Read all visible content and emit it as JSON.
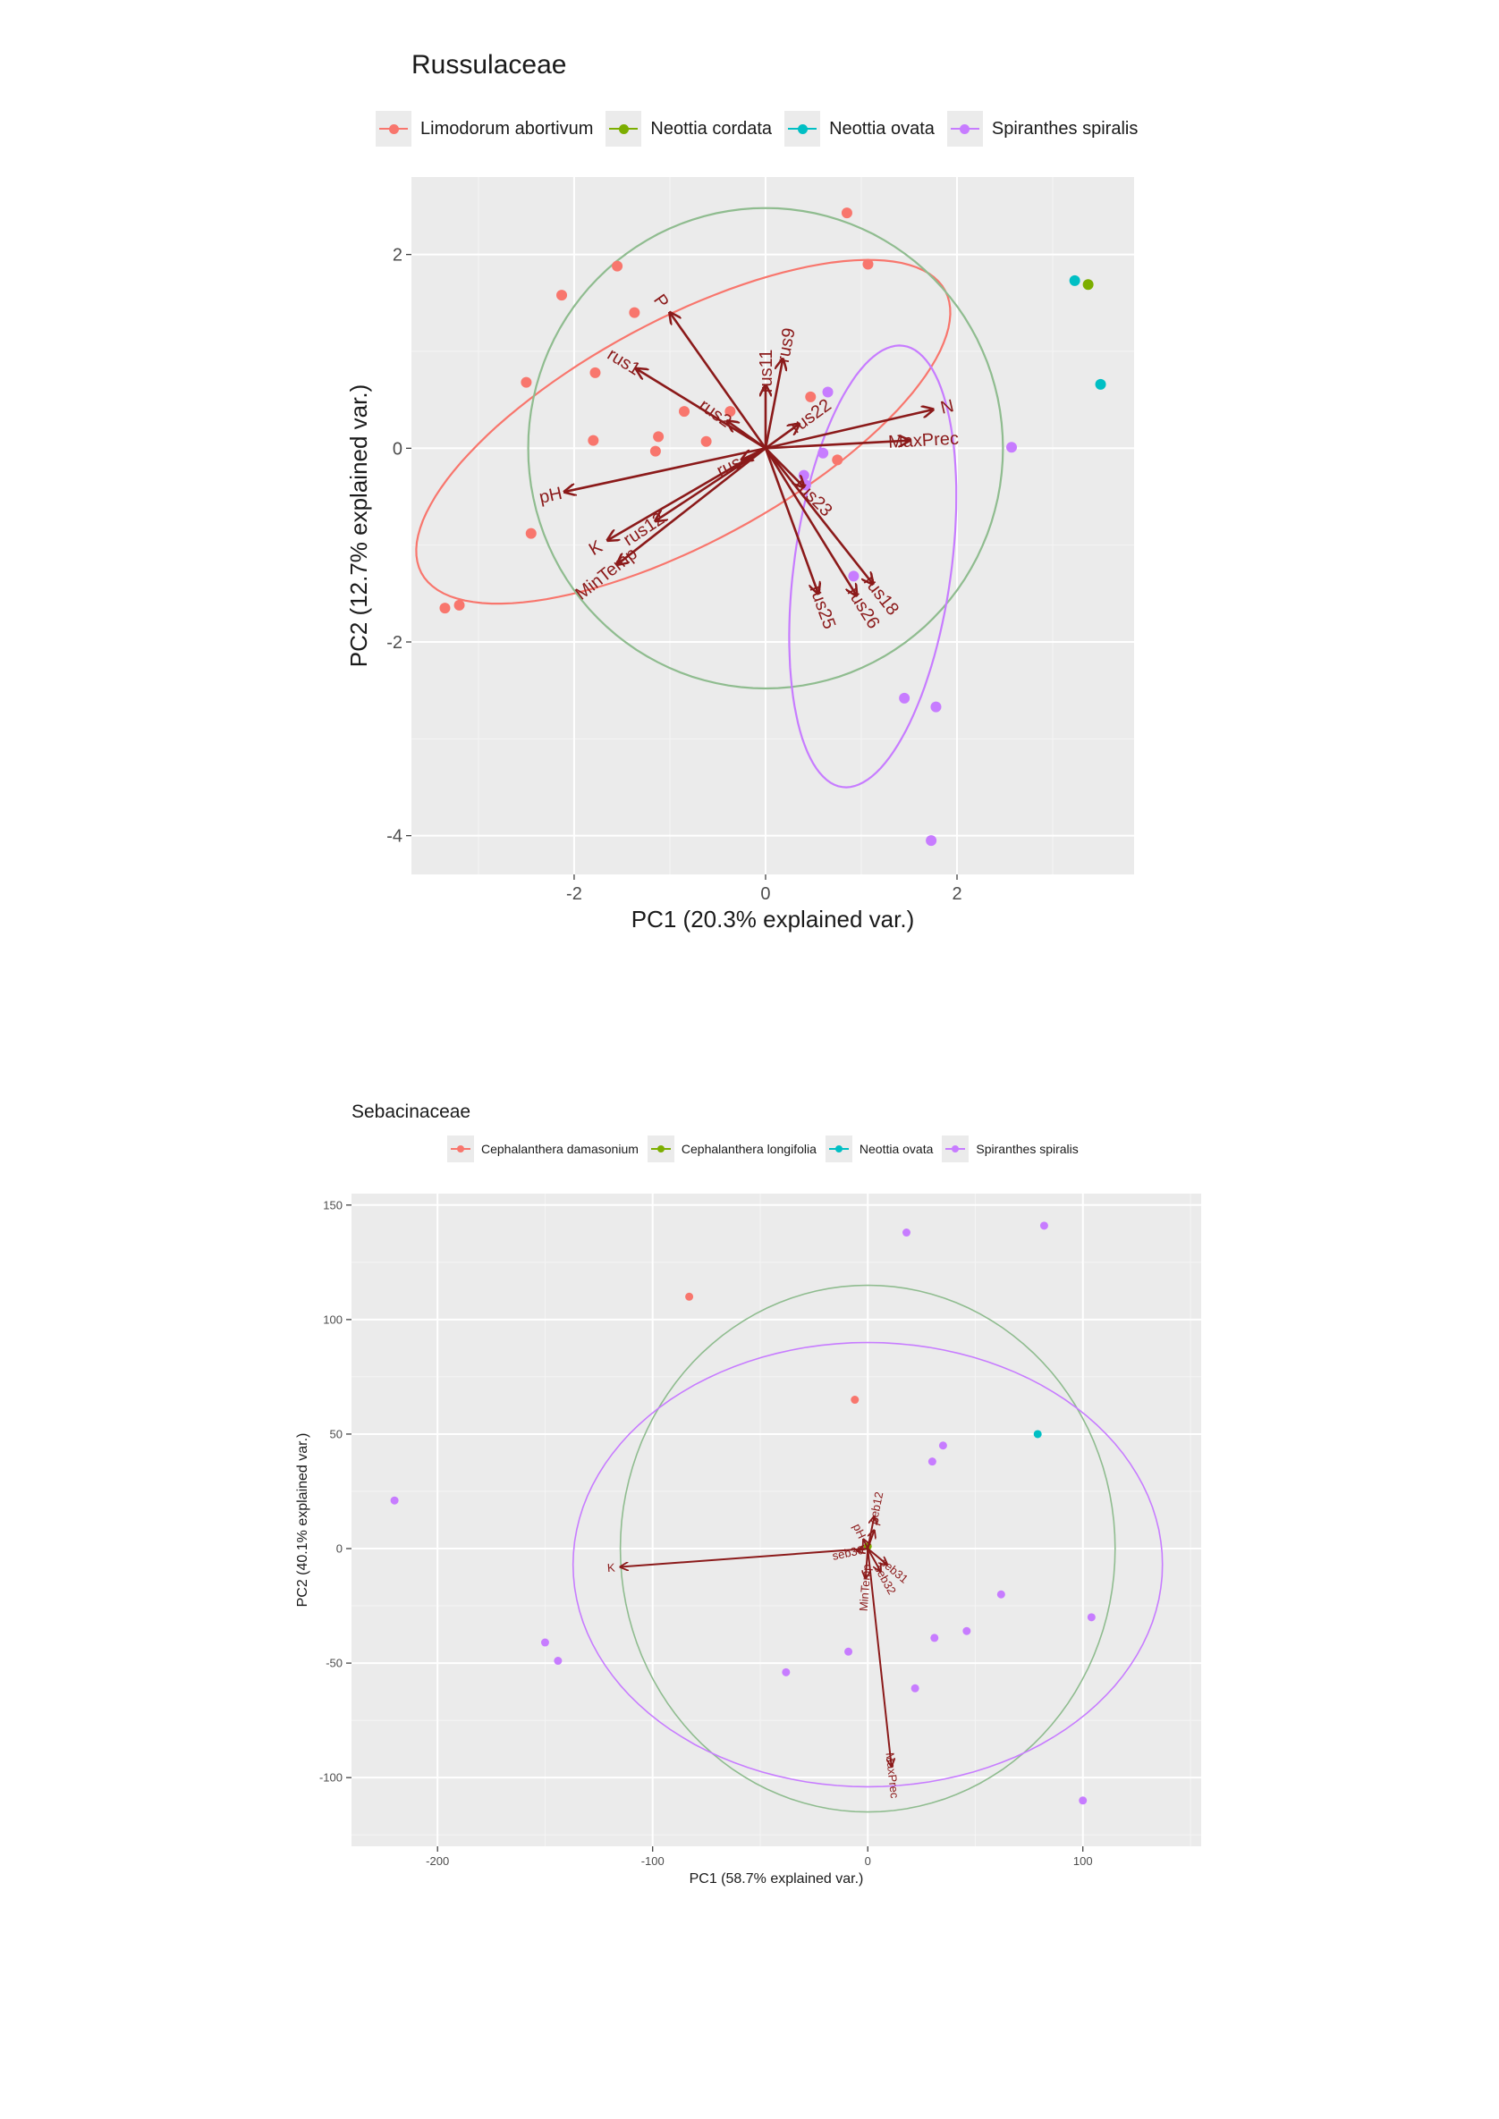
{
  "chart_data": [
    {
      "type": "scatter",
      "title": "Russulaceae",
      "xlabel": "PC1 (20.3% explained var.)",
      "ylabel": "PC2 (12.7% explained var.)",
      "xlim": [
        -3.7,
        3.85
      ],
      "ylim": [
        -4.4,
        2.8
      ],
      "xticks": [
        -2,
        0,
        2
      ],
      "yticks": [
        -4,
        -2,
        0,
        2
      ],
      "grid": true,
      "legend_position": "top",
      "series": [
        {
          "name": "Limodorum abortivum",
          "color": "#F8766D",
          "points": [
            [
              0.85,
              2.43
            ],
            [
              1.07,
              1.9
            ],
            [
              -1.55,
              1.88
            ],
            [
              -2.13,
              1.58
            ],
            [
              -1.37,
              1.4
            ],
            [
              -2.5,
              0.68
            ],
            [
              -1.78,
              0.78
            ],
            [
              0.47,
              0.53
            ],
            [
              -0.85,
              0.38
            ],
            [
              -0.37,
              0.38
            ],
            [
              -1.12,
              0.12
            ],
            [
              -1.8,
              0.08
            ],
            [
              -0.62,
              0.07
            ],
            [
              -1.15,
              -0.03
            ],
            [
              0.75,
              -0.12
            ],
            [
              -2.45,
              -0.88
            ],
            [
              -3.2,
              -1.62
            ],
            [
              -3.35,
              -1.65
            ]
          ]
        },
        {
          "name": "Neottia cordata",
          "color": "#7CAE00",
          "points": [
            [
              3.37,
              1.69
            ]
          ]
        },
        {
          "name": "Neottia ovata",
          "color": "#00BFC4",
          "points": [
            [
              3.23,
              1.73
            ],
            [
              3.5,
              0.66
            ]
          ]
        },
        {
          "name": "Spiranthes spiralis",
          "color": "#C77CFF",
          "points": [
            [
              0.65,
              0.58
            ],
            [
              2.57,
              0.01
            ],
            [
              0.6,
              -0.05
            ],
            [
              0.4,
              -0.28
            ],
            [
              0.42,
              -0.38
            ],
            [
              0.92,
              -1.32
            ],
            [
              1.45,
              -2.58
            ],
            [
              1.78,
              -2.67
            ],
            [
              1.73,
              -4.05
            ]
          ]
        }
      ],
      "ellipses": [
        {
          "group": "Limodorum abortivum",
          "color": "#F8766D",
          "cx": -0.86,
          "cy": 0.17,
          "rx": 3.1,
          "ry": 1.15,
          "angle_deg": 28
        },
        {
          "group": "all",
          "color": "#8fbc8f",
          "cx": 0.0,
          "cy": 0.0,
          "rx": 2.48,
          "ry": 2.48,
          "angle_deg": 0
        },
        {
          "group": "Spiranthes spiralis",
          "color": "#C77CFF",
          "cx": 1.12,
          "cy": -1.22,
          "rx": 2.3,
          "ry": 0.82,
          "angle_deg": 82
        }
      ],
      "vectors": [
        {
          "label": "P",
          "x": -1.0,
          "y": 1.4
        },
        {
          "label": "rus1",
          "x": -1.35,
          "y": 0.82
        },
        {
          "label": "rus11",
          "x": 0.0,
          "y": 0.65
        },
        {
          "label": "rus9",
          "x": 0.18,
          "y": 0.92
        },
        {
          "label": "rus2",
          "x": -0.4,
          "y": 0.28
        },
        {
          "label": "rus22",
          "x": 0.35,
          "y": 0.25
        },
        {
          "label": "N",
          "x": 1.75,
          "y": 0.4
        },
        {
          "label": "MaxPrec",
          "x": 1.5,
          "y": 0.08
        },
        {
          "label": "rus",
          "x": -0.25,
          "y": -0.12
        },
        {
          "label": "pH",
          "x": -2.1,
          "y": -0.45
        },
        {
          "label": "rus12",
          "x": -1.15,
          "y": -0.75
        },
        {
          "label": "K",
          "x": -1.65,
          "y": -0.95
        },
        {
          "label": "MinTemp",
          "x": -1.55,
          "y": -1.2
        },
        {
          "label": "rus23",
          "x": 0.4,
          "y": -0.4
        },
        {
          "label": "rus25",
          "x": 0.55,
          "y": -1.5
        },
        {
          "label": "rus26",
          "x": 0.95,
          "y": -1.52
        },
        {
          "label": "rus18",
          "x": 1.12,
          "y": -1.4
        }
      ]
    },
    {
      "type": "scatter",
      "title": "Sebacinaceae",
      "xlabel": "PC1 (58.7% explained var.)",
      "ylabel": "PC2 (40.1% explained var.)",
      "xlim": [
        -240,
        155
      ],
      "ylim": [
        -130,
        155
      ],
      "xticks": [
        -200,
        -100,
        0,
        100
      ],
      "yticks": [
        -100,
        -50,
        0,
        50,
        100,
        150
      ],
      "grid": true,
      "legend_position": "top",
      "series": [
        {
          "name": "Cephalanthera damasonium",
          "color": "#F8766D",
          "points": [
            [
              -83,
              110
            ],
            [
              -6,
              65
            ]
          ]
        },
        {
          "name": "Cephalanthera longifolia",
          "color": "#7CAE00",
          "points": [
            [
              0,
              1
            ]
          ]
        },
        {
          "name": "Neottia ovata",
          "color": "#00BFC4",
          "points": [
            [
              79,
              50
            ]
          ]
        },
        {
          "name": "Spiranthes spiralis",
          "color": "#C77CFF",
          "points": [
            [
              18,
              138
            ],
            [
              82,
              141
            ],
            [
              -220,
              21
            ],
            [
              35,
              45
            ],
            [
              30,
              38
            ],
            [
              62,
              -20
            ],
            [
              104,
              -30
            ],
            [
              -150,
              -41
            ],
            [
              -144,
              -49
            ],
            [
              -9,
              -45
            ],
            [
              -38,
              -54
            ],
            [
              46,
              -36
            ],
            [
              31,
              -39
            ],
            [
              22,
              -61
            ],
            [
              100,
              -110
            ]
          ]
        }
      ],
      "ellipses": [
        {
          "group": "all",
          "color": "#8fbc8f",
          "cx": 0,
          "cy": 0,
          "rx": 115,
          "ry": 115,
          "angle_deg": 0
        },
        {
          "group": "Spiranthes spiralis",
          "color": "#C77CFF",
          "cx": 0,
          "cy": -7,
          "rx": 137,
          "ry": 97,
          "angle_deg": 0
        }
      ],
      "vectors": [
        {
          "label": "K",
          "x": -115,
          "y": -8
        },
        {
          "label": "MaxPrec",
          "x": 11,
          "y": -95
        },
        {
          "label": "seb12",
          "x": 3,
          "y": 14
        },
        {
          "label": "P",
          "x": 3,
          "y": 8
        },
        {
          "label": "pH",
          "x": -2,
          "y": 4
        },
        {
          "label": "seb30",
          "x": -5,
          "y": -1
        },
        {
          "label": "seb31",
          "x": 9,
          "y": -7
        },
        {
          "label": "seb32",
          "x": 6,
          "y": -10
        },
        {
          "label": "MinTemp",
          "x": -1,
          "y": -13
        }
      ]
    }
  ]
}
